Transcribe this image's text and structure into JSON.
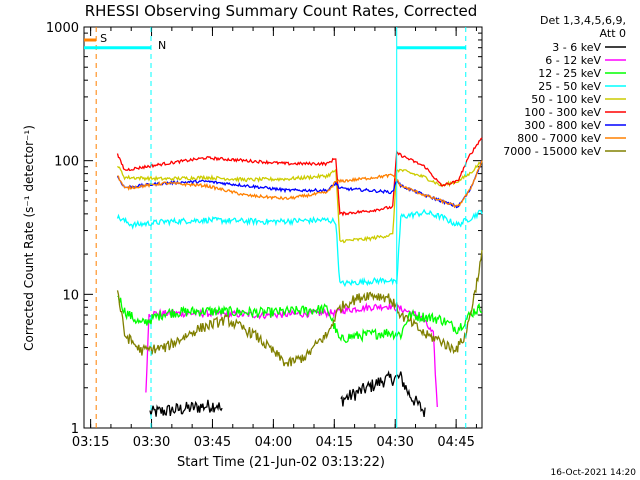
{
  "chart_data": {
    "type": "line",
    "title": "RHESSI Observing Summary Count Rates, Corrected",
    "xlabel": "Start Time (21-Jun-02 03:13:22)",
    "ylabel": "Corrected Count Rate (s⁻¹ detector⁻¹)",
    "yscale": "log",
    "ylim": [
      1,
      1000
    ],
    "xlim_minutes": [
      0,
      98
    ],
    "x_tick_minutes": [
      1.63,
      16.63,
      31.63,
      46.63,
      61.63,
      76.63,
      91.63
    ],
    "x_tick_labels": [
      "03:15",
      "03:30",
      "03:45",
      "04:00",
      "04:15",
      "04:30",
      "04:45"
    ],
    "y_ticks": [
      1,
      10,
      100,
      1000
    ],
    "y_tick_labels": [
      "1",
      "10",
      "100",
      "1000"
    ],
    "legend": {
      "header": [
        "Det 1,3,4,5,6,9,",
        "Att 0"
      ],
      "placement": "right"
    },
    "flags": [
      {
        "label": "S",
        "color": "#ff8000",
        "value": 1000
      },
      {
        "label": "N",
        "color": "#00ffff",
        "value": 700
      }
    ],
    "series": [
      {
        "name": "3 - 6 keV",
        "color": "#000000",
        "x": [
          0,
          15,
          16,
          33,
          34,
          62,
          63,
          74,
          78,
          80,
          84,
          87,
          88,
          98
        ],
        "y": [
          null,
          null,
          1.3,
          1.5,
          1.3,
          null,
          1.6,
          2.3,
          2.4,
          1.8,
          1.3,
          null,
          null,
          null
        ]
      },
      {
        "name": "6 - 12 keV",
        "color": "#ff00ff",
        "x": [
          0,
          14,
          15,
          16,
          30,
          45,
          62,
          64,
          70,
          75,
          78,
          83,
          86,
          87,
          95,
          96
        ],
        "y": [
          null,
          null,
          1.2,
          7.2,
          7.2,
          7.0,
          7.3,
          7.6,
          8.0,
          8.2,
          7.8,
          6.8,
          5.0,
          1.4,
          null,
          1.6
        ]
      },
      {
        "name": "12 - 25 keV",
        "color": "#00ff00",
        "x": [
          0,
          8,
          10,
          14,
          20,
          30,
          45,
          55,
          60,
          63,
          65,
          70,
          75,
          78,
          80,
          84,
          88,
          92,
          95,
          96,
          98
        ],
        "y": [
          null,
          10.5,
          7.5,
          6.0,
          7.3,
          7.5,
          7.3,
          7.6,
          7.8,
          4.5,
          4.8,
          5.0,
          5.2,
          5.0,
          7.0,
          6.8,
          6.5,
          5.5,
          7.0,
          7.5,
          8.0
        ]
      },
      {
        "name": "25 - 50 keV",
        "color": "#00ffff",
        "x": [
          0,
          8,
          12,
          20,
          30,
          45,
          60,
          62,
          63,
          70,
          75,
          77,
          78,
          84,
          88,
          92,
          95,
          98
        ],
        "y": [
          null,
          38,
          33,
          35,
          36,
          35,
          36,
          35,
          12,
          12.5,
          12.8,
          12,
          38,
          41,
          38,
          33,
          37,
          42
        ]
      },
      {
        "name": "50 - 100 keV",
        "color": "#cccc00",
        "x": [
          0,
          8,
          10,
          20,
          30,
          40,
          50,
          60,
          62,
          63,
          70,
          76,
          77,
          78,
          84,
          88,
          92,
          95,
          98
        ],
        "y": [
          null,
          95,
          75,
          73,
          75,
          72,
          73,
          77,
          85,
          25,
          26,
          28,
          85,
          85,
          75,
          65,
          70,
          80,
          100
        ]
      },
      {
        "name": "100 - 300 keV",
        "color": "#ff0000",
        "x": [
          0,
          8,
          10,
          20,
          30,
          40,
          50,
          60,
          62,
          63,
          70,
          76,
          77,
          78,
          84,
          88,
          92,
          95,
          98
        ],
        "y": [
          null,
          115,
          85,
          95,
          105,
          100,
          95,
          95,
          105,
          40,
          42,
          45,
          115,
          110,
          90,
          65,
          70,
          110,
          150
        ]
      },
      {
        "name": "300 - 800 keV",
        "color": "#0000ff",
        "x": [
          0,
          8,
          10,
          20,
          30,
          40,
          50,
          60,
          62,
          63,
          70,
          76,
          77,
          78,
          84,
          88,
          92,
          95,
          98
        ],
        "y": [
          null,
          78,
          63,
          68,
          70,
          65,
          60,
          60,
          68,
          62,
          60,
          58,
          72,
          65,
          55,
          50,
          45,
          60,
          100
        ]
      },
      {
        "name": "800 - 7000 keV",
        "color": "#ff8000",
        "x": [
          0,
          8,
          10,
          20,
          30,
          40,
          50,
          60,
          62,
          63,
          70,
          76,
          77,
          78,
          84,
          88,
          92,
          95,
          98
        ],
        "y": [
          null,
          80,
          62,
          68,
          65,
          55,
          52,
          58,
          70,
          70,
          74,
          78,
          72,
          65,
          55,
          50,
          45,
          60,
          100
        ]
      },
      {
        "name": "7000 - 15000 keV",
        "color": "#808000",
        "x": [
          0,
          8,
          10,
          14,
          20,
          28,
          35,
          42,
          50,
          55,
          58,
          60,
          62,
          63,
          66,
          70,
          75,
          77,
          78,
          81,
          84,
          88,
          90,
          92,
          94,
          96,
          98
        ],
        "y": [
          null,
          12,
          5.0,
          3.8,
          4.0,
          5.5,
          6.5,
          5.0,
          3.0,
          3.5,
          4.5,
          5.0,
          7.0,
          8.0,
          9.0,
          10.0,
          9.5,
          8.0,
          7.0,
          6.0,
          5.0,
          4.5,
          4.0,
          4.0,
          5.0,
          9.5,
          20.0
        ]
      }
    ],
    "footer_date": "16-Oct-2021 14:20"
  }
}
